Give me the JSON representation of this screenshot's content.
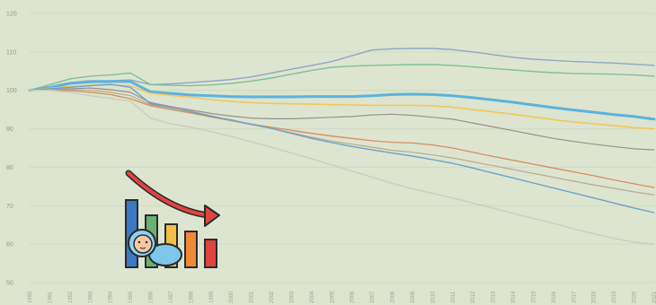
{
  "chart_data": {
    "type": "line",
    "title": "",
    "xlabel": "",
    "ylabel": "",
    "ylim": [
      50,
      120
    ],
    "yticks": [
      50,
      60,
      70,
      80,
      90,
      100,
      110,
      120
    ],
    "x": [
      1990,
      1991,
      1992,
      1993,
      1994,
      1995,
      1996,
      1997,
      1998,
      1999,
      2000,
      2001,
      2002,
      2003,
      2004,
      2005,
      2006,
      2007,
      2008,
      2009,
      2010,
      2011,
      2012,
      2013,
      2014,
      2015,
      2016,
      2017,
      2018,
      2019,
      2020,
      2021
    ],
    "grid": true,
    "legend": "none",
    "series": [
      {
        "color": "#8fa5c4",
        "width": 1.4,
        "values": [
          100,
          101,
          102,
          102.5,
          102.5,
          102.7,
          101.5,
          101.7,
          102,
          102.4,
          102.8,
          103.5,
          104.5,
          105.5,
          106.5,
          107.5,
          109,
          110.5,
          110.8,
          110.9,
          110.9,
          110.6,
          110,
          109.3,
          108.6,
          108.1,
          107.8,
          107.5,
          107.3,
          107.1,
          106.8,
          106.5
        ]
      },
      {
        "color": "#7fbf95",
        "width": 1.4,
        "values": [
          100,
          101.5,
          103,
          103.7,
          104,
          104.5,
          101.5,
          101.3,
          101.2,
          101.4,
          101.8,
          102.4,
          103.2,
          104.2,
          105.2,
          106,
          106.3,
          106.5,
          106.6,
          106.7,
          106.7,
          106.5,
          106.1,
          105.7,
          105.3,
          104.9,
          104.6,
          104.4,
          104.3,
          104.2,
          104,
          103.7
        ]
      },
      {
        "color": "#5ab3dd",
        "width": 3,
        "values": [
          100,
          100.7,
          101.8,
          102.2,
          102.3,
          102.3,
          99.6,
          99.2,
          98.8,
          98.6,
          98.4,
          98.3,
          98.3,
          98.3,
          98.4,
          98.4,
          98.4,
          98.6,
          98.9,
          99,
          98.9,
          98.6,
          98.1,
          97.5,
          96.9,
          96.2,
          95.5,
          94.9,
          94.3,
          93.7,
          93.2,
          92.5
        ]
      },
      {
        "color": "#f0c85c",
        "width": 1.6,
        "values": [
          100,
          100.5,
          101,
          101.3,
          101.4,
          101.2,
          99.2,
          98.7,
          98.2,
          97.6,
          97.1,
          96.8,
          96.6,
          96.5,
          96.4,
          96.3,
          96.2,
          96.1,
          96.1,
          96.1,
          96,
          95.6,
          95,
          94.4,
          93.8,
          93.1,
          92.4,
          91.8,
          91.3,
          90.8,
          90.3,
          90
        ]
      },
      {
        "color": "#9a8e8e",
        "width": 1.2,
        "values": [
          100,
          100.2,
          100.4,
          100.6,
          100.2,
          99.5,
          96.8,
          95.8,
          94.9,
          94,
          93.3,
          92.8,
          92.6,
          92.6,
          92.8,
          93,
          93.2,
          93.6,
          93.8,
          93.5,
          93,
          92.5,
          91.5,
          90.5,
          89.5,
          88.5,
          87.5,
          86.7,
          86,
          85.4,
          84.8,
          84.5
        ]
      },
      {
        "color": "#d98c5a",
        "width": 1.3,
        "values": [
          100,
          100.1,
          99.9,
          99.5,
          98.9,
          97.8,
          96,
          95,
          94.1,
          93.1,
          92.1,
          91.2,
          90.4,
          89.6,
          88.8,
          88.1,
          87.5,
          86.9,
          86.5,
          86.3,
          85.8,
          85,
          83.9,
          82.8,
          81.8,
          80.8,
          79.8,
          78.8,
          77.8,
          76.7,
          75.7,
          74.7
        ]
      },
      {
        "color": "#b8aa8e",
        "width": 1.2,
        "values": [
          100,
          100.2,
          100.2,
          100,
          99.5,
          98.6,
          96.3,
          95.4,
          94.6,
          93.4,
          92.1,
          91.1,
          90.1,
          89,
          87.8,
          86.8,
          86,
          85.2,
          84.4,
          83.9,
          83.2,
          82.4,
          81.4,
          80.4,
          79.4,
          78.4,
          77.4,
          76.4,
          75.4,
          74.5,
          73.6,
          72.8
        ]
      },
      {
        "color": "#6aa2cc",
        "width": 1.4,
        "values": [
          100,
          100.4,
          100.8,
          101.2,
          101.6,
          100.8,
          96.5,
          95.5,
          94.4,
          93.3,
          92.3,
          91.2,
          90.1,
          88.8,
          87.5,
          86.4,
          85.4,
          84.5,
          83.7,
          82.9,
          82,
          81,
          79.8,
          78.5,
          77.2,
          75.9,
          74.6,
          73.3,
          72,
          70.7,
          69.4,
          68.2
        ]
      },
      {
        "color": "#c9cdbd",
        "width": 1.4,
        "values": [
          100,
          100,
          99.5,
          98.6,
          97.9,
          97.2,
          92.8,
          91.3,
          90.4,
          89.3,
          88,
          86.6,
          85.2,
          83.7,
          82.2,
          80.6,
          79,
          77.4,
          75.8,
          74.4,
          73.2,
          72,
          70.7,
          69.4,
          68,
          66.7,
          65.4,
          64,
          62.7,
          61.5,
          60.5,
          60
        ]
      }
    ]
  }
}
